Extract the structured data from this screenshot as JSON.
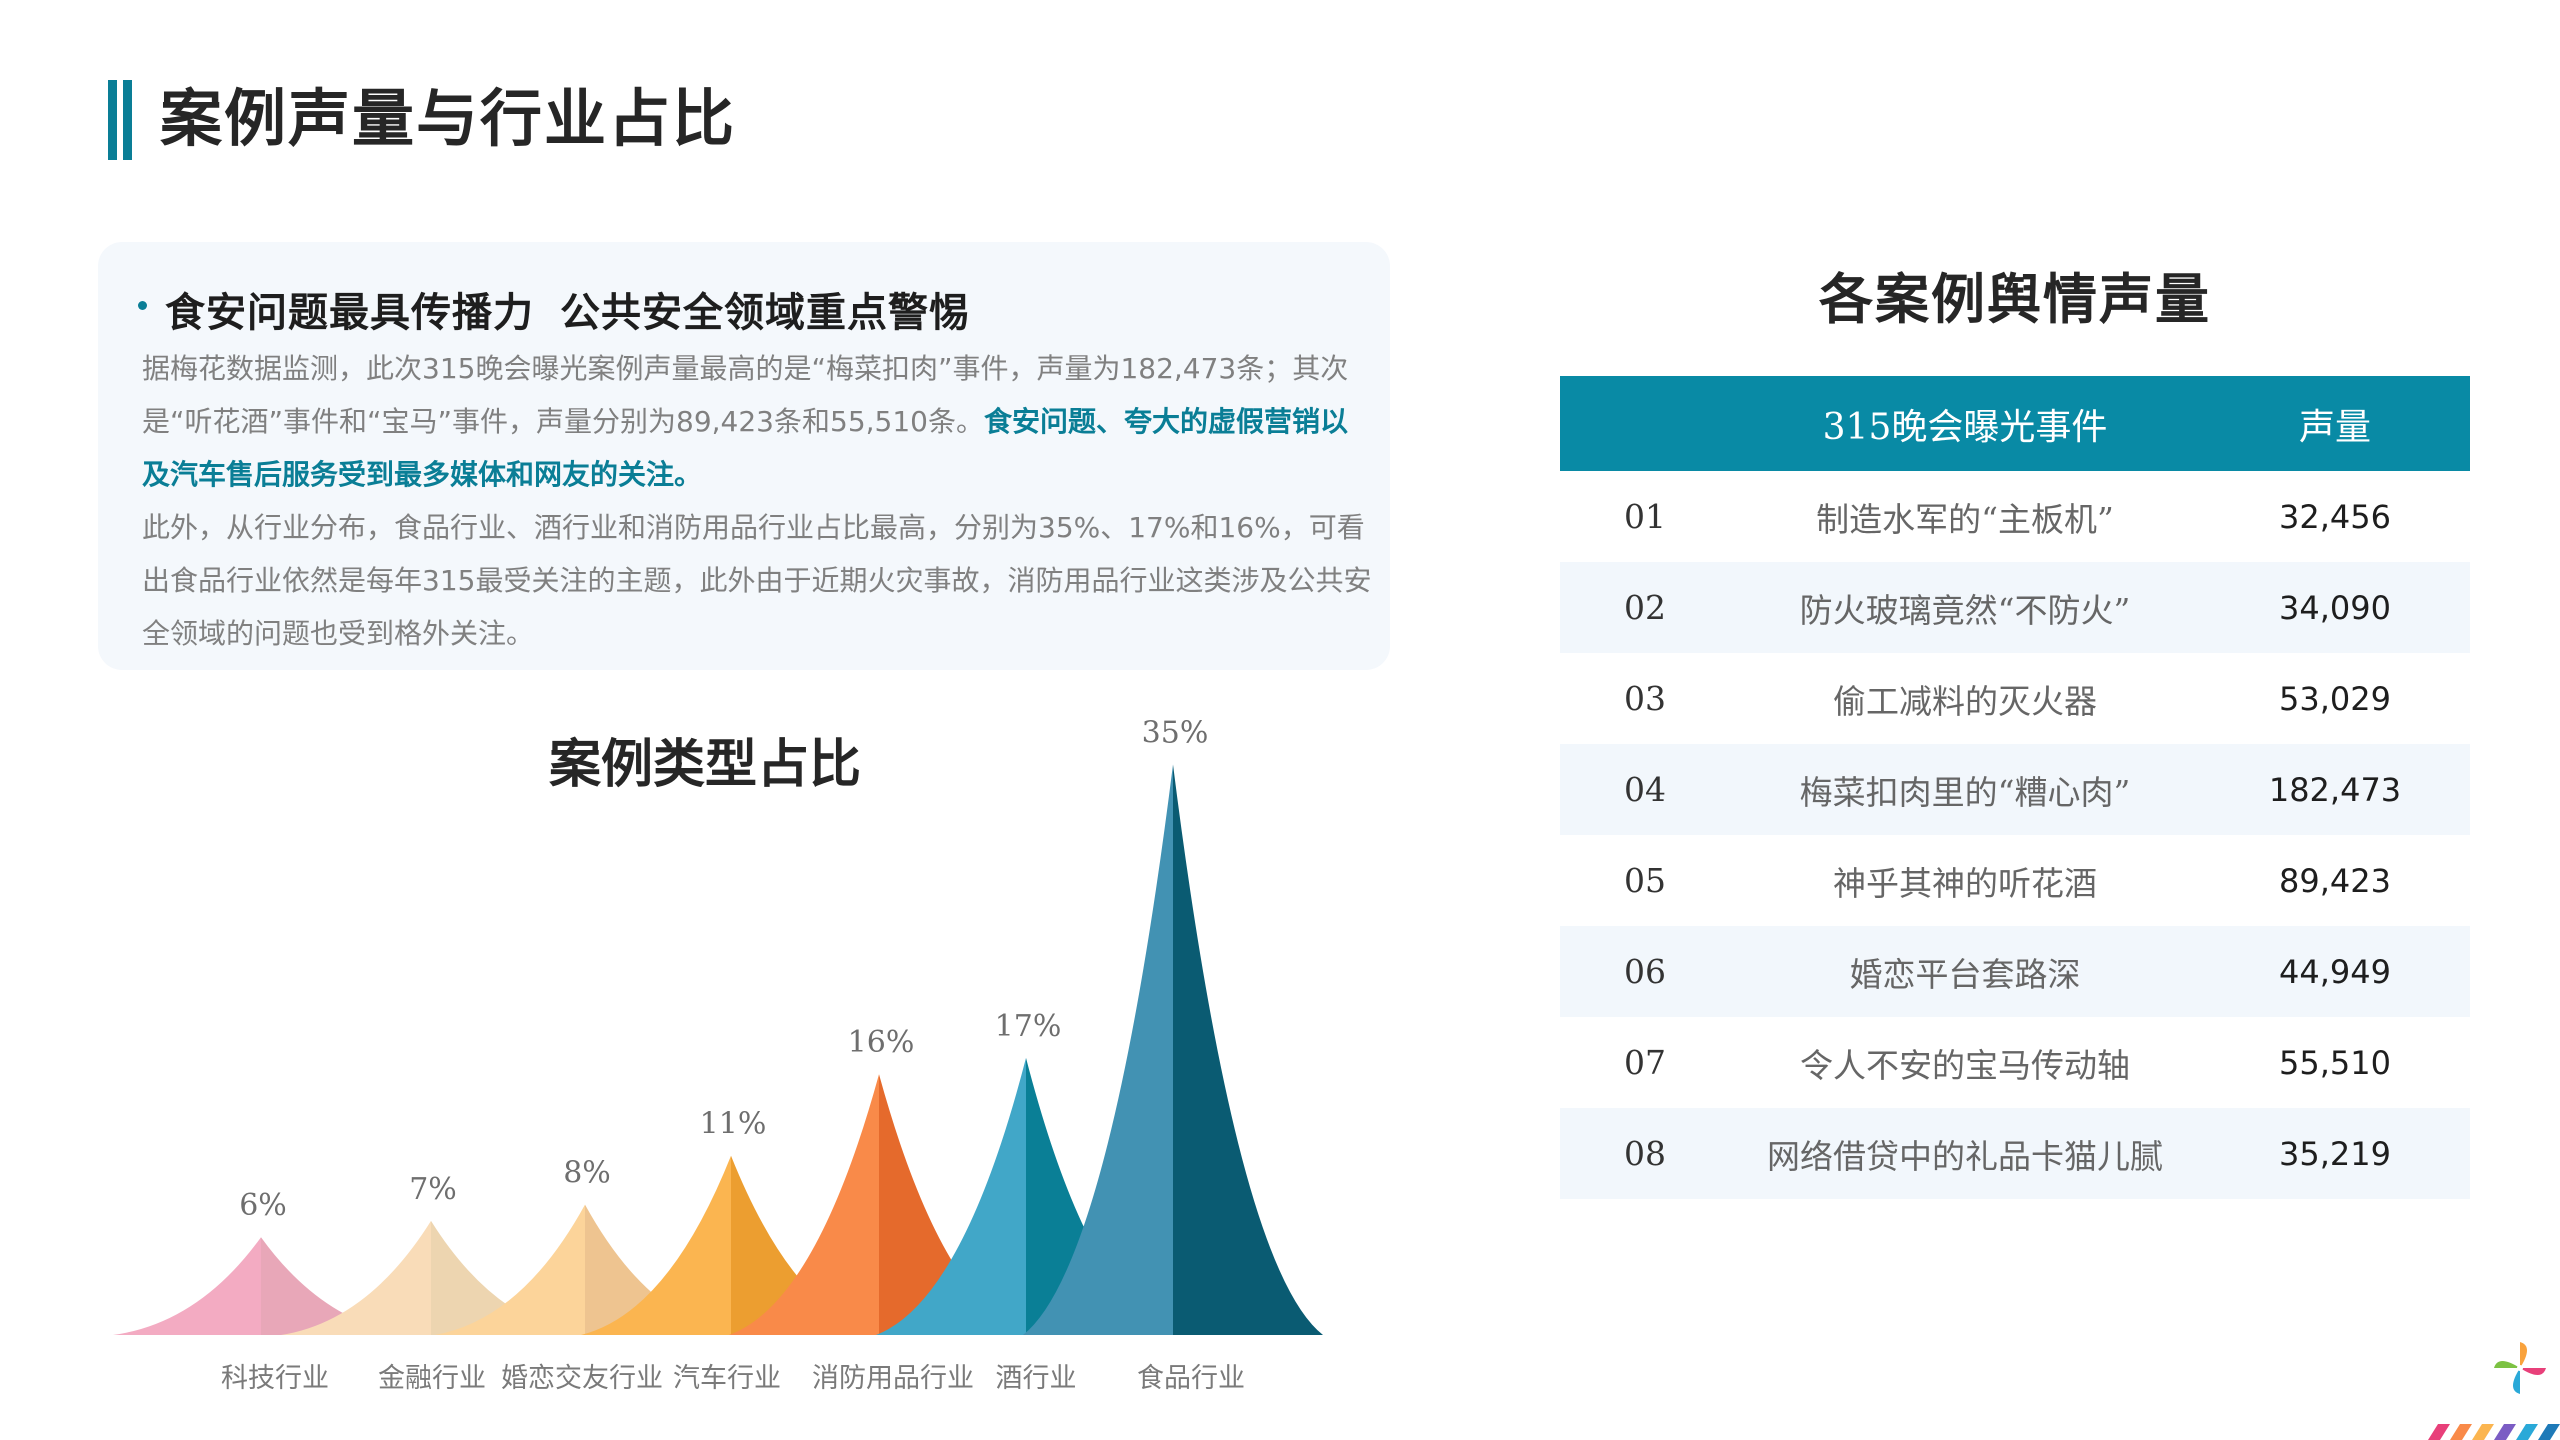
{
  "page": {
    "title": "案例声量与行业占比"
  },
  "summary": {
    "heading_part1": "食安问题最具传播力",
    "heading_part2": "公共安全领域重点警惕",
    "para1_text": "据梅花数据监测，此次315晚会曝光案例声量最高的是“梅菜扣肉”事件，声量为182,473条；其次是“听花酒”事件和“宝马”事件，声量分别为89,423条和55,510条。",
    "para1_highlight": "食安问题、夸大的虚假营销以及汽车售后服务受到最多媒体和网友的关注。",
    "para2_text": "此外，从行业分布，食品行业、酒行业和消防用品行业占比最高，分别为35%、17%和16%，可看出食品行业依然是每年315最受关注的主题，此外由于近期火灾事故，消防用品行业这类涉及公共安全领域的问题也受到格外关注。"
  },
  "chart_data": {
    "type": "bar",
    "title": "案例类型占比",
    "categories": [
      "科技行业",
      "金融行业",
      "婚恋交友行业",
      "汽车行业",
      "消防用品行业",
      "酒行业",
      "食品行业"
    ],
    "values": [
      6,
      7,
      8,
      11,
      16,
      17,
      35
    ],
    "value_labels": [
      "6%",
      "7%",
      "8%",
      "11%",
      "16%",
      "17%",
      "35%"
    ],
    "unit": "%",
    "colors": [
      {
        "light": "#f3abc2",
        "dark": "#e8a7b8"
      },
      {
        "light": "#f9dcb8",
        "dark": "#edd5b0"
      },
      {
        "light": "#fcd49a",
        "dark": "#eec490"
      },
      {
        "light": "#fbb550",
        "dark": "#ec9e30"
      },
      {
        "light": "#f98a49",
        "dark": "#e56a2c"
      },
      {
        "light": "#41a7c8",
        "dark": "#0a7f96"
      },
      {
        "light": "#4292b3",
        "dark": "#0a5b72"
      }
    ]
  },
  "table": {
    "title": "各案例舆情声量",
    "header_event": "315晚会曝光事件",
    "header_volume": "声量",
    "rows": [
      {
        "index": "01",
        "event": "制造水军的“主板机”",
        "volume": "32,456"
      },
      {
        "index": "02",
        "event": "防火玻璃竟然“不防火”",
        "volume": "34,090"
      },
      {
        "index": "03",
        "event": "偷工减料的灭火器",
        "volume": "53,029"
      },
      {
        "index": "04",
        "event": "梅菜扣肉里的“糟心肉”",
        "volume": "182,473"
      },
      {
        "index": "05",
        "event": "神乎其神的听花酒",
        "volume": "89,423"
      },
      {
        "index": "06",
        "event": "婚恋平台套路深",
        "volume": "44,949"
      },
      {
        "index": "07",
        "event": "令人不安的宝马传动轴",
        "volume": "55,510"
      },
      {
        "index": "08",
        "event": "网络借贷中的礼品卡猫儿腻",
        "volume": "35,219"
      }
    ]
  }
}
